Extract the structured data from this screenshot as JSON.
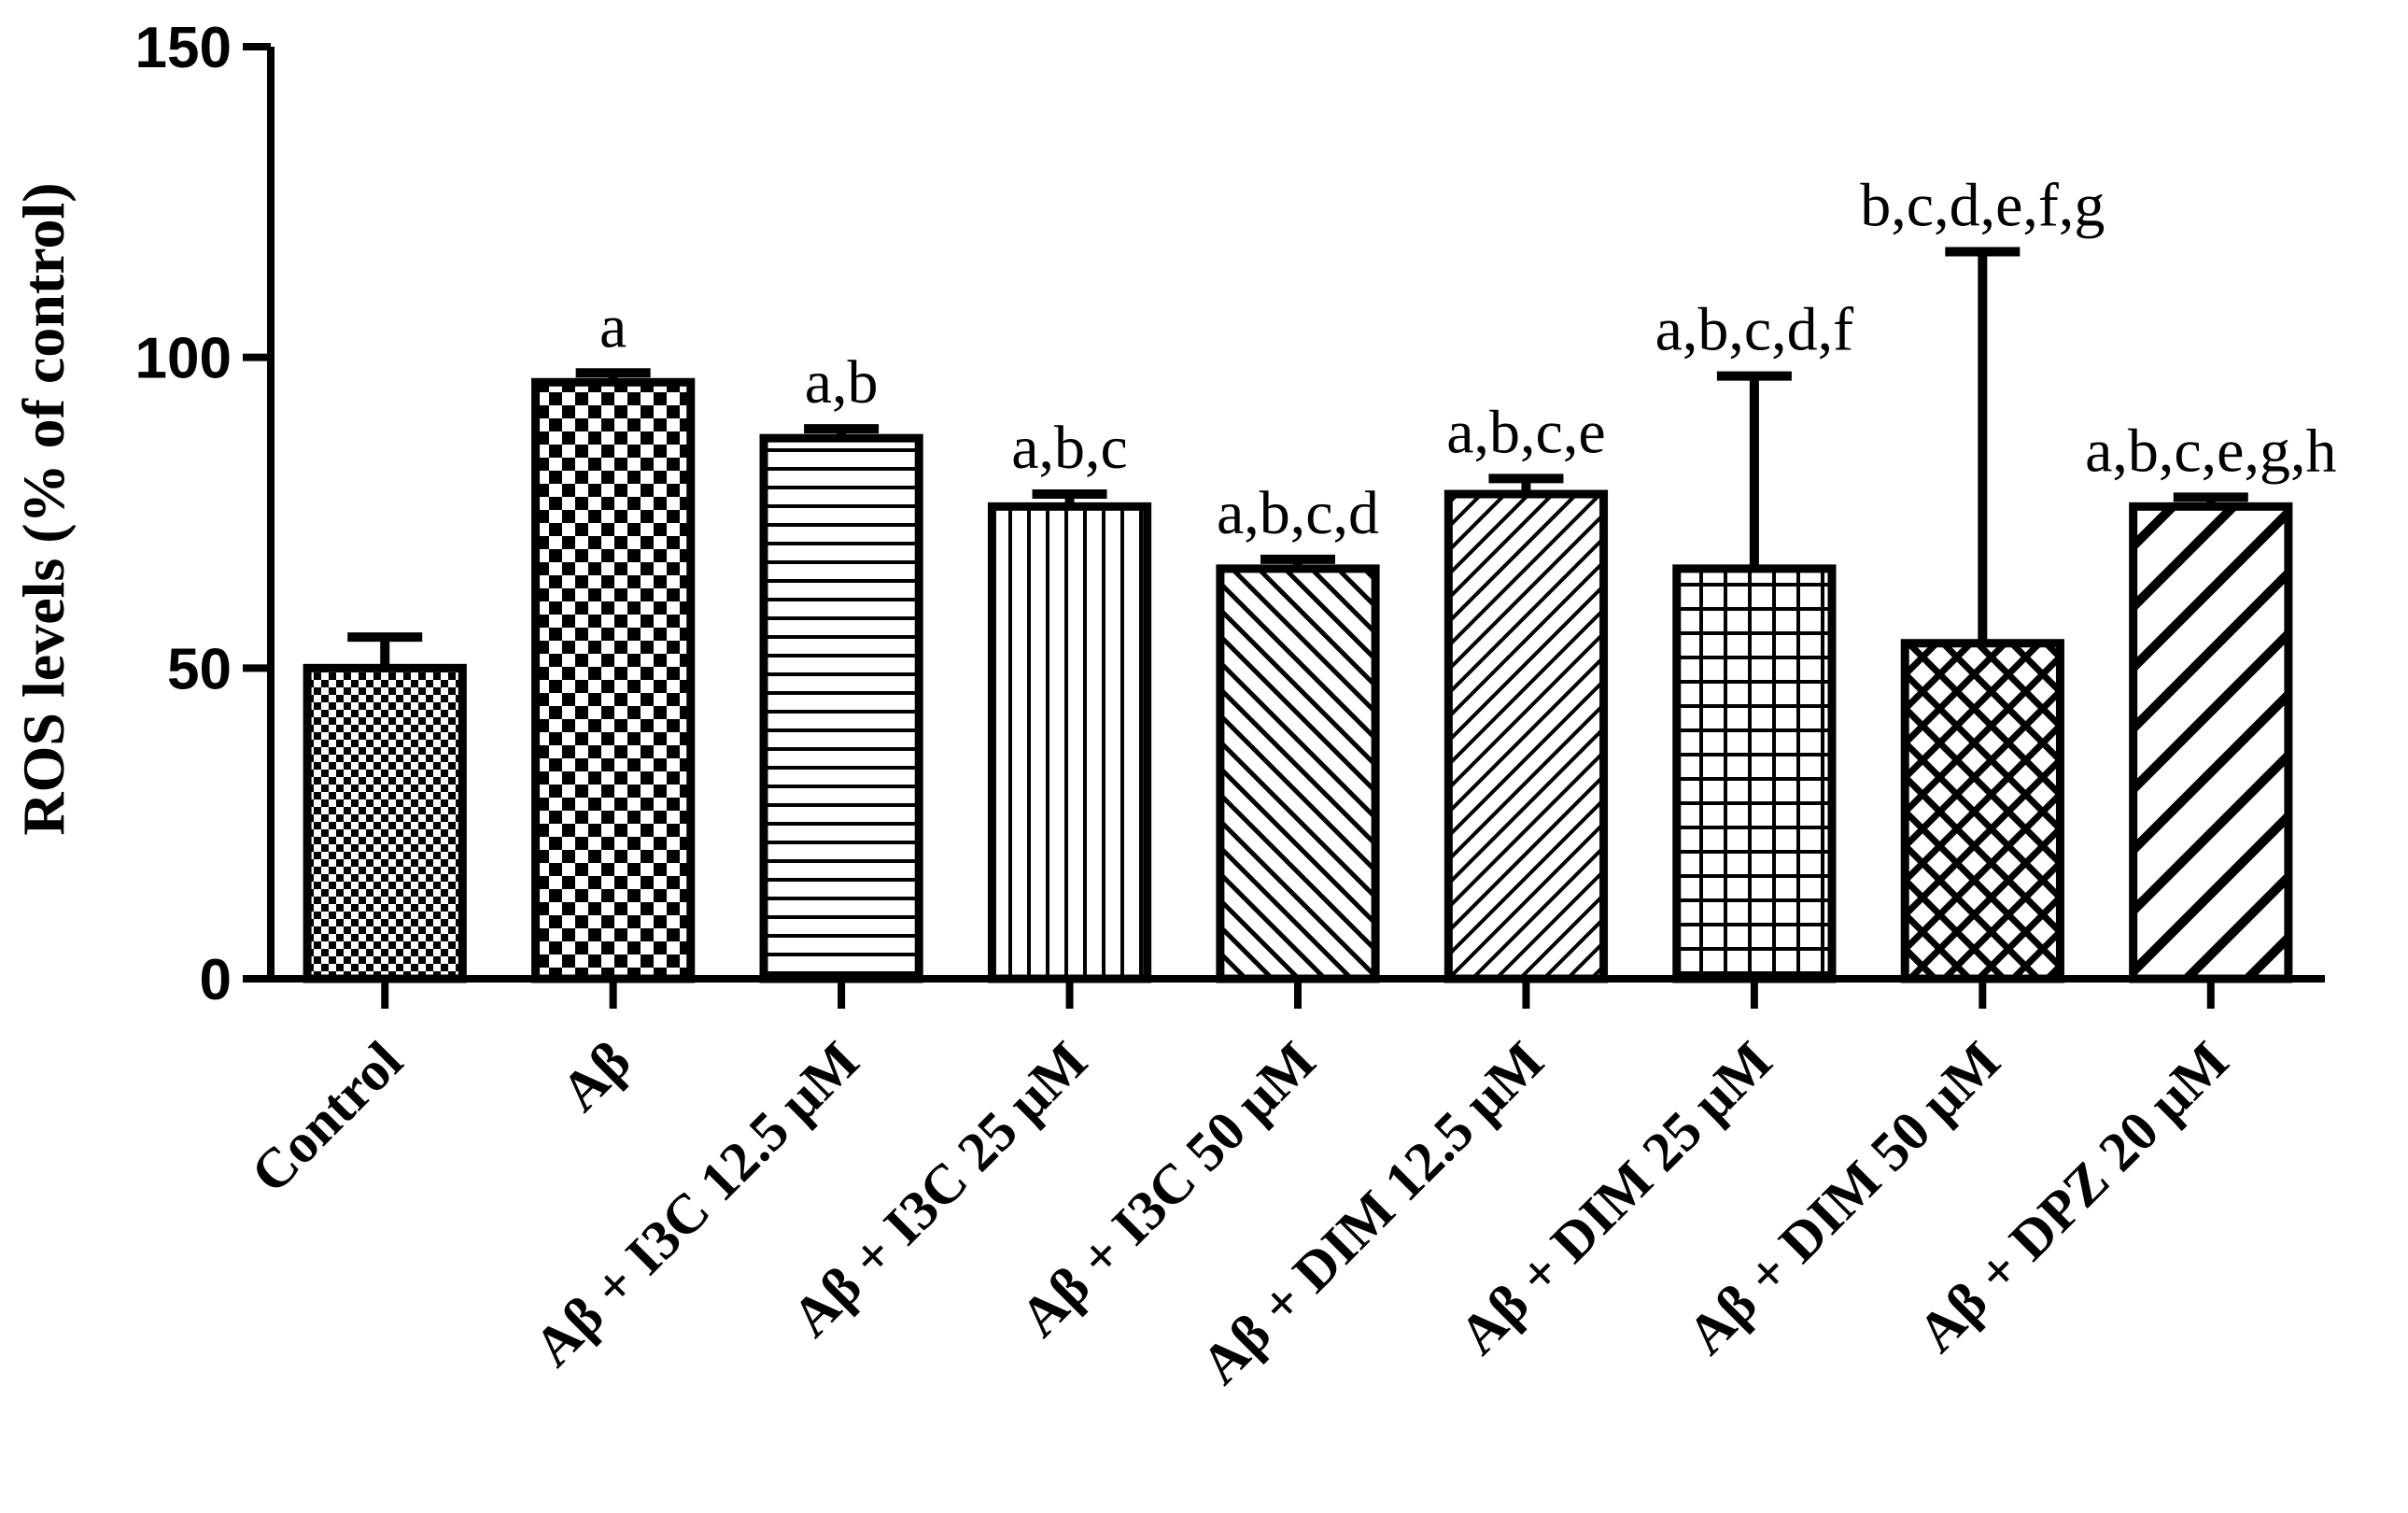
{
  "chart_data": {
    "type": "bar",
    "title": "",
    "xlabel": "",
    "ylabel": "ROS levels (% of control)",
    "ylim": [
      0,
      150
    ],
    "yticks": [
      0,
      50,
      100,
      150
    ],
    "grid": false,
    "legend": "none",
    "categories": [
      "Control",
      "Aβ",
      "Aβ + I3C 12.5 μM",
      "Aβ + I3C 25 μM",
      "Aβ + I3C 50 μM",
      "Aβ + DIM 12.5 μM",
      "Aβ + DIM 25 μM",
      "Aβ + DIM 50 μM",
      "Aβ + DPZ 20 μM"
    ],
    "values": [
      50,
      96,
      87,
      76,
      66,
      78,
      66,
      54,
      76
    ],
    "errors": [
      5,
      1.5,
      1.5,
      2,
      1.5,
      2.5,
      31,
      63,
      1.5
    ],
    "annotations": [
      "",
      "a",
      "a,b",
      "a,b,c",
      "a,b,c,d",
      "a,b,c,e",
      "a,b,c,d,f",
      "b,c,d,e,f,g",
      "a,b,c,e,g,h"
    ],
    "patterns": [
      "fine-checker",
      "coarse-checker",
      "horizontal-lines",
      "vertical-lines",
      "diagonal-fine",
      "diagonal-back",
      "grid",
      "crosshatch",
      "diagonal-wide"
    ],
    "bar_color": "#ffffff",
    "stroke_color": "#000000"
  }
}
